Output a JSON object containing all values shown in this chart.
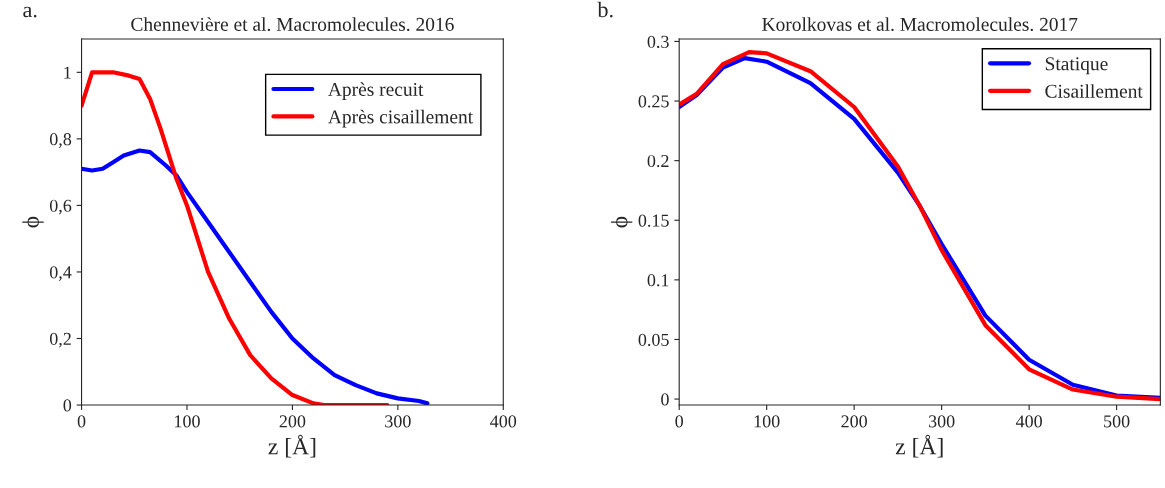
{
  "chart_data": [
    {
      "type": "line",
      "title": "Chennevière et al. Macromolecules. 2016",
      "annotations": [
        "a."
      ],
      "xlabel": "z [Å]",
      "ylabel": "ϕ",
      "xlim": [
        0,
        400
      ],
      "xticks": [
        0,
        100,
        200,
        300,
        400
      ],
      "ylim": [
        0,
        1.1
      ],
      "yticks": [
        0,
        {
          "value": 0.2,
          "label": "0,2"
        },
        {
          "value": 0.4,
          "label": "0,4"
        },
        {
          "value": 0.6,
          "label": "0,6"
        },
        {
          "value": 0.8,
          "label": "0,8"
        },
        1
      ],
      "legend": "top right",
      "grid": false,
      "series": [
        {
          "name": "Après recuit",
          "color": "#0000ff",
          "x": [
            0,
            10,
            20,
            30,
            40,
            55,
            65,
            80,
            90,
            100,
            120,
            140,
            160,
            180,
            200,
            220,
            240,
            260,
            280,
            300,
            320,
            328
          ],
          "values": [
            0.71,
            0.705,
            0.71,
            0.73,
            0.75,
            0.765,
            0.76,
            0.72,
            0.69,
            0.64,
            0.55,
            0.46,
            0.37,
            0.28,
            0.2,
            0.14,
            0.09,
            0.06,
            0.035,
            0.02,
            0.012,
            0.005
          ]
        },
        {
          "name": "Après cisaillement",
          "color": "#ff0000",
          "x": [
            0,
            10,
            30,
            45,
            55,
            65,
            75,
            90,
            100,
            110,
            120,
            140,
            160,
            180,
            200,
            220,
            230,
            290
          ],
          "values": [
            0.9,
            1.0,
            1.0,
            0.99,
            0.98,
            0.92,
            0.83,
            0.68,
            0.6,
            0.5,
            0.4,
            0.26,
            0.15,
            0.08,
            0.03,
            0.005,
            0,
            0
          ]
        }
      ]
    },
    {
      "type": "line",
      "title": "Korolkovas et al. Macromolecules. 2017",
      "annotations": [
        "b."
      ],
      "xlabel": "z [Å]",
      "ylabel": "ϕ",
      "xlim": [
        0,
        550
      ],
      "xticks": [
        0,
        100,
        200,
        300,
        400,
        500
      ],
      "ylim": [
        -0.005,
        0.302
      ],
      "yticks": [
        0,
        0.05,
        0.1,
        0.15,
        0.2,
        0.25,
        0.3
      ],
      "legend": "top right",
      "grid": false,
      "series": [
        {
          "name": "Statique",
          "color": "#0000ff",
          "x": [
            0,
            20,
            50,
            75,
            100,
            150,
            200,
            250,
            275,
            300,
            350,
            400,
            450,
            500,
            550
          ],
          "values": [
            0.245,
            0.255,
            0.278,
            0.286,
            0.283,
            0.265,
            0.235,
            0.19,
            0.162,
            0.13,
            0.07,
            0.033,
            0.012,
            0.003,
            0.001
          ]
        },
        {
          "name": "Cisaillement",
          "color": "#ff0000",
          "x": [
            0,
            20,
            50,
            80,
            100,
            150,
            200,
            250,
            275,
            300,
            350,
            400,
            450,
            500,
            550
          ],
          "values": [
            0.247,
            0.256,
            0.281,
            0.291,
            0.29,
            0.275,
            0.245,
            0.195,
            0.162,
            0.125,
            0.062,
            0.025,
            0.008,
            0.002,
            0
          ]
        }
      ]
    }
  ]
}
